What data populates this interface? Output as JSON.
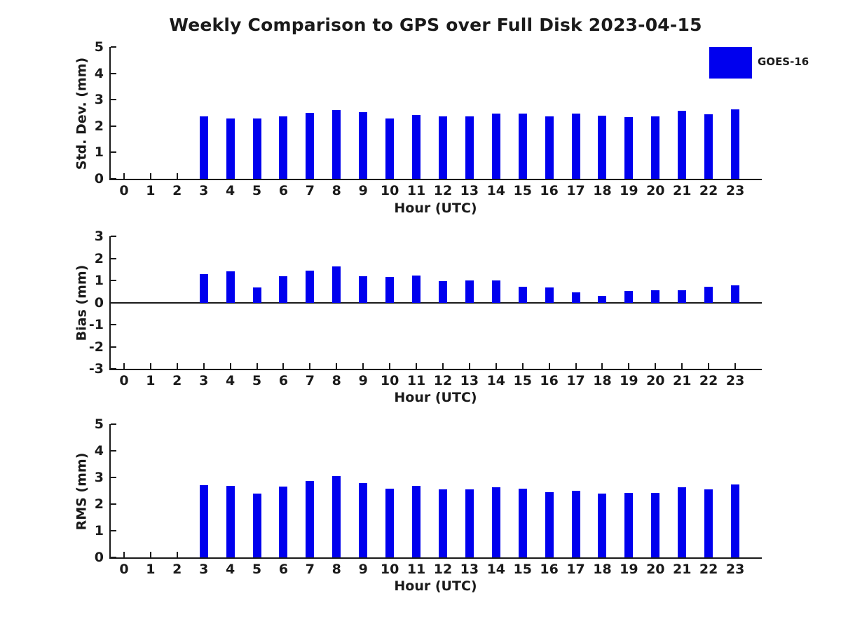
{
  "title": "Weekly Comparison to GPS over Full Disk 2023-04-15",
  "legend": {
    "label": "GOES-16",
    "color": "#0000EE",
    "position": "top-right"
  },
  "chart_data": [
    {
      "type": "bar",
      "series_name": "GOES-16",
      "bar_color": "#0000EE",
      "ylabel": "Std. Dev. (mm)",
      "xlabel": "Hour (UTC)",
      "ylim": [
        0,
        5
      ],
      "yticks": [
        0,
        1,
        2,
        3,
        4,
        5
      ],
      "grid": false,
      "categories": [
        0,
        1,
        2,
        3,
        4,
        5,
        6,
        7,
        8,
        9,
        10,
        11,
        12,
        13,
        14,
        15,
        16,
        17,
        18,
        19,
        20,
        21,
        22,
        23
      ],
      "values": [
        0,
        0,
        0,
        2.37,
        2.3,
        2.3,
        2.37,
        2.5,
        2.61,
        2.53,
        2.3,
        2.42,
        2.36,
        2.36,
        2.47,
        2.47,
        2.36,
        2.48,
        2.39,
        2.35,
        2.36,
        2.58,
        2.45,
        2.63
      ]
    },
    {
      "type": "bar",
      "series_name": "GOES-16",
      "bar_color": "#0000EE",
      "ylabel": "Bias (mm)",
      "xlabel": "Hour (UTC)",
      "ylim": [
        -3,
        3
      ],
      "yticks": [
        -3,
        -2,
        -1,
        0,
        1,
        2,
        3
      ],
      "grid": false,
      "categories": [
        0,
        1,
        2,
        3,
        4,
        5,
        6,
        7,
        8,
        9,
        10,
        11,
        12,
        13,
        14,
        15,
        16,
        17,
        18,
        19,
        20,
        21,
        22,
        23
      ],
      "values": [
        0,
        0,
        0,
        1.3,
        1.42,
        0.67,
        1.19,
        1.45,
        1.63,
        1.2,
        1.16,
        1.22,
        0.98,
        1.0,
        1.0,
        0.71,
        0.68,
        0.46,
        0.3,
        0.52,
        0.57,
        0.55,
        0.72,
        0.77
      ]
    },
    {
      "type": "bar",
      "series_name": "GOES-16",
      "bar_color": "#0000EE",
      "ylabel": "RMS (mm)",
      "xlabel": "Hour (UTC)",
      "ylim": [
        0,
        5
      ],
      "yticks": [
        0,
        1,
        2,
        3,
        4,
        5
      ],
      "grid": false,
      "categories": [
        0,
        1,
        2,
        3,
        4,
        5,
        6,
        7,
        8,
        9,
        10,
        11,
        12,
        13,
        14,
        15,
        16,
        17,
        18,
        19,
        20,
        21,
        22,
        23
      ],
      "values": [
        0,
        0,
        0,
        2.71,
        2.69,
        2.39,
        2.66,
        2.87,
        3.06,
        2.79,
        2.57,
        2.69,
        2.55,
        2.56,
        2.64,
        2.57,
        2.45,
        2.5,
        2.4,
        2.42,
        2.43,
        2.64,
        2.56,
        2.73
      ]
    }
  ]
}
